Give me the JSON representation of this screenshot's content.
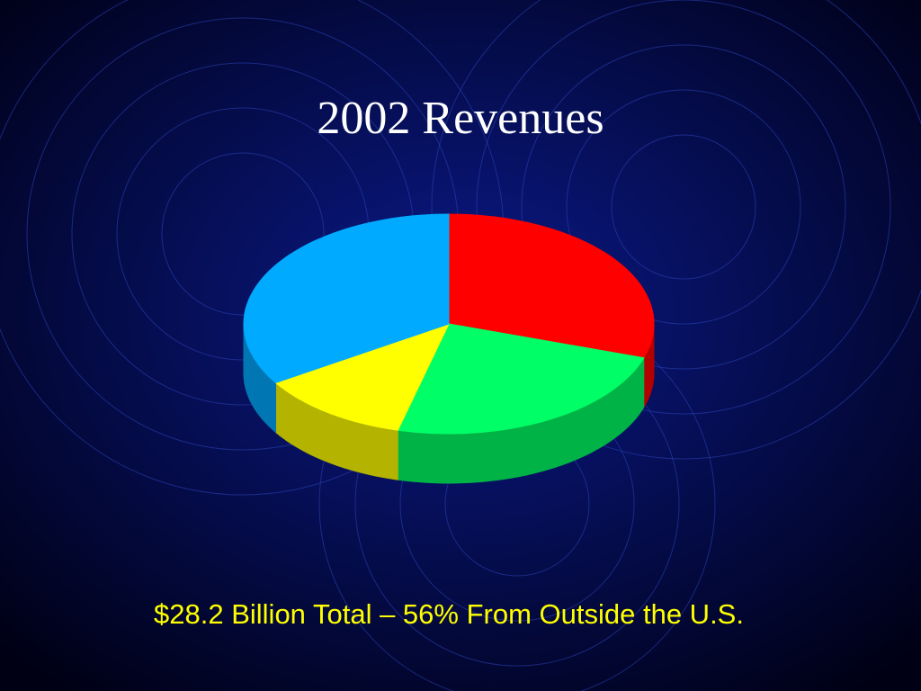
{
  "chart_data": {
    "type": "pie",
    "title": "2002 Revenues",
    "subtitle": "$28.2 Billion Total – 56% From Outside the U.S.",
    "categories": [
      null,
      null,
      null,
      null
    ],
    "values": [
      30,
      24,
      12,
      34
    ],
    "colors": [
      "#ff0000",
      "#00ff66",
      "#ffff00",
      "#00aaff"
    ]
  }
}
